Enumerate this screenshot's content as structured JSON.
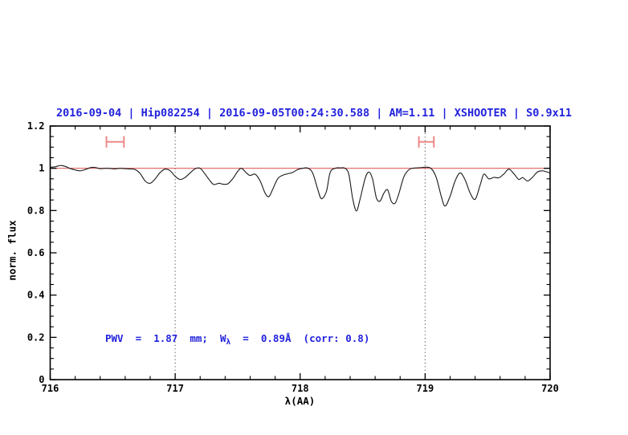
{
  "title": {
    "text": "2016-09-04 | Hip082254 | 2016-09-05T00:24:30.588 | AM=1.11 | XSHOOTER | S0.9x11"
  },
  "annotation": {
    "pre": "PWV  =  1.87  mm;  W",
    "sub": "λ",
    "post": "  =  0.89Å  (corr: 0.8)"
  },
  "colors": {
    "blue_text": "#2222dd",
    "spectrum_line": "#1a1a1a",
    "reference_line": "#e06060",
    "marker": "#ee8888",
    "dotted_guide": "#555555",
    "frame": "#000000"
  },
  "chart_data": {
    "type": "line",
    "title": "2016-09-04 | Hip082254 | 2016-09-05T00:24:30.588 | AM=1.11 | XSHOOTER | S0.9x11",
    "xlabel": "λ(AA)",
    "ylabel": "norm. flux",
    "xlim": [
      716,
      720
    ],
    "ylim": [
      0,
      1.2
    ],
    "x_tick_labels": [
      "716",
      "717",
      "718",
      "719",
      "720"
    ],
    "x_major_ticks": [
      716,
      717,
      718,
      719,
      720
    ],
    "x_minor_step": 0.2,
    "y_tick_labels": [
      "0",
      "0.2",
      "0.4",
      "0.6",
      "0.8",
      "1",
      "1.2"
    ],
    "y_major_ticks": [
      0,
      0.2,
      0.4,
      0.6,
      0.8,
      1.0,
      1.2
    ],
    "y_minor_step": 0.05,
    "grid": false,
    "legend": false,
    "dotted_guides_x": [
      717,
      719
    ],
    "reference_line_y": 1.0,
    "range_markers": [
      {
        "x_min": 716.45,
        "x_max": 716.59,
        "y": 1.125,
        "cap_half": 0.027
      },
      {
        "x_min": 718.95,
        "x_max": 719.07,
        "y": 1.125,
        "cap_half": 0.027
      }
    ],
    "series": [
      {
        "name": "normalized spectrum",
        "points": [
          [
            716.0,
            1.005
          ],
          [
            716.04,
            1.007
          ],
          [
            716.08,
            1.013
          ],
          [
            716.12,
            1.009
          ],
          [
            716.16,
            0.999
          ],
          [
            716.2,
            0.992
          ],
          [
            716.24,
            0.988
          ],
          [
            716.28,
            0.994
          ],
          [
            716.32,
            1.003
          ],
          [
            716.36,
            1.004
          ],
          [
            716.4,
            0.998
          ],
          [
            716.44,
            1.0
          ],
          [
            716.48,
            0.999
          ],
          [
            716.52,
            0.997
          ],
          [
            716.56,
            1.0
          ],
          [
            716.6,
            0.998
          ],
          [
            716.64,
            0.997
          ],
          [
            716.68,
            0.994
          ],
          [
            716.72,
            0.975
          ],
          [
            716.76,
            0.94
          ],
          [
            716.8,
            0.929
          ],
          [
            716.84,
            0.95
          ],
          [
            716.88,
            0.98
          ],
          [
            716.92,
            0.996
          ],
          [
            716.96,
            0.988
          ],
          [
            717.0,
            0.962
          ],
          [
            717.04,
            0.947
          ],
          [
            717.08,
            0.957
          ],
          [
            717.12,
            0.978
          ],
          [
            717.16,
            0.998
          ],
          [
            717.2,
            1.0
          ],
          [
            717.24,
            0.972
          ],
          [
            717.28,
            0.94
          ],
          [
            717.31,
            0.923
          ],
          [
            717.35,
            0.929
          ],
          [
            717.38,
            0.925
          ],
          [
            717.42,
            0.926
          ],
          [
            717.46,
            0.95
          ],
          [
            717.5,
            0.985
          ],
          [
            717.53,
            1.0
          ],
          [
            717.57,
            0.978
          ],
          [
            717.6,
            0.966
          ],
          [
            717.64,
            0.972
          ],
          [
            717.68,
            0.94
          ],
          [
            717.72,
            0.882
          ],
          [
            717.75,
            0.866
          ],
          [
            717.78,
            0.9
          ],
          [
            717.82,
            0.95
          ],
          [
            717.86,
            0.967
          ],
          [
            717.9,
            0.974
          ],
          [
            717.94,
            0.98
          ],
          [
            717.98,
            0.994
          ],
          [
            718.02,
            1.0
          ],
          [
            718.06,
            1.001
          ],
          [
            718.1,
            0.978
          ],
          [
            718.14,
            0.902
          ],
          [
            718.17,
            0.856
          ],
          [
            718.21,
            0.89
          ],
          [
            718.24,
            0.98
          ],
          [
            718.28,
            1.0
          ],
          [
            718.32,
            1.002
          ],
          [
            718.36,
            1.0
          ],
          [
            718.39,
            0.97
          ],
          [
            718.42,
            0.858
          ],
          [
            718.45,
            0.798
          ],
          [
            718.48,
            0.855
          ],
          [
            718.52,
            0.952
          ],
          [
            718.55,
            0.982
          ],
          [
            718.58,
            0.948
          ],
          [
            718.61,
            0.86
          ],
          [
            718.64,
            0.845
          ],
          [
            718.67,
            0.882
          ],
          [
            718.7,
            0.898
          ],
          [
            718.73,
            0.843
          ],
          [
            718.76,
            0.835
          ],
          [
            718.79,
            0.88
          ],
          [
            718.83,
            0.96
          ],
          [
            718.87,
            0.993
          ],
          [
            718.91,
            1.001
          ],
          [
            718.96,
            1.003
          ],
          [
            719.01,
            1.005
          ],
          [
            719.05,
            0.998
          ],
          [
            719.09,
            0.955
          ],
          [
            719.13,
            0.865
          ],
          [
            719.16,
            0.821
          ],
          [
            719.2,
            0.868
          ],
          [
            719.24,
            0.94
          ],
          [
            719.28,
            0.978
          ],
          [
            719.32,
            0.945
          ],
          [
            719.36,
            0.883
          ],
          [
            719.4,
            0.853
          ],
          [
            719.44,
            0.92
          ],
          [
            719.47,
            0.972
          ],
          [
            719.51,
            0.95
          ],
          [
            719.55,
            0.957
          ],
          [
            719.59,
            0.955
          ],
          [
            719.63,
            0.973
          ],
          [
            719.67,
            0.996
          ],
          [
            719.71,
            0.974
          ],
          [
            719.75,
            0.947
          ],
          [
            719.78,
            0.956
          ],
          [
            719.82,
            0.94
          ],
          [
            719.86,
            0.958
          ],
          [
            719.9,
            0.983
          ],
          [
            719.94,
            0.988
          ],
          [
            720.0,
            0.978
          ]
        ]
      }
    ],
    "annotation_text": "PWV = 1.87 mm; Wλ = 0.89Å (corr: 0.8)"
  }
}
